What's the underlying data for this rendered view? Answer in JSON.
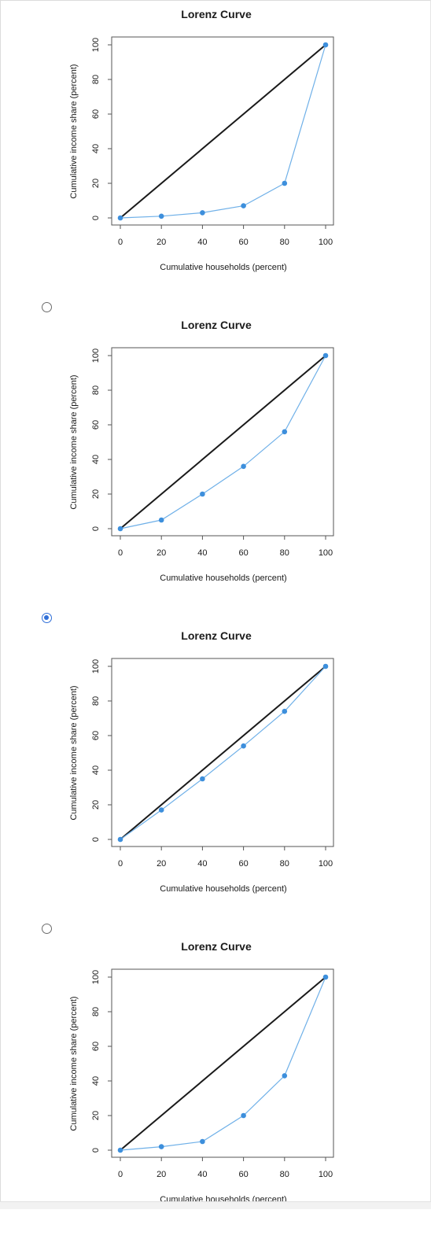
{
  "colors": {
    "equality_line": "#1a1a1a",
    "lorenz_line": "#6fb0e8",
    "lorenz_point": "#3d8fdc",
    "radio_selected": "#2f6fd8"
  },
  "options": [
    {
      "has_radio": false,
      "selected": false
    },
    {
      "has_radio": true,
      "selected": false
    },
    {
      "has_radio": true,
      "selected": true
    },
    {
      "has_radio": true,
      "selected": false
    }
  ],
  "chart_data": [
    {
      "type": "line",
      "title": "Lorenz Curve",
      "xlabel": "Cumulative households (percent)",
      "ylabel": "Cumulative income share (percent)",
      "xticks": [
        "0",
        "20",
        "40",
        "60",
        "80",
        "100"
      ],
      "yticks": [
        "0",
        "20",
        "40",
        "60",
        "80",
        "100"
      ],
      "xlim": [
        0,
        100
      ],
      "ylim": [
        0,
        100
      ],
      "series": [
        {
          "x": [
            0,
            100
          ],
          "y": [
            0,
            100
          ]
        },
        {
          "x": [
            0,
            20,
            40,
            60,
            80,
            100
          ],
          "y": [
            0,
            1,
            3,
            7,
            20,
            100
          ]
        }
      ]
    },
    {
      "type": "line",
      "title": "Lorenz Curve",
      "xlabel": "Cumulative households (percent)",
      "ylabel": "Cumulative income share (percent)",
      "xticks": [
        "0",
        "20",
        "40",
        "60",
        "80",
        "100"
      ],
      "yticks": [
        "0",
        "20",
        "40",
        "60",
        "80",
        "100"
      ],
      "xlim": [
        0,
        100
      ],
      "ylim": [
        0,
        100
      ],
      "series": [
        {
          "x": [
            0,
            100
          ],
          "y": [
            0,
            100
          ]
        },
        {
          "x": [
            0,
            20,
            40,
            60,
            80,
            100
          ],
          "y": [
            0,
            5,
            20,
            36,
            56,
            100
          ]
        }
      ]
    },
    {
      "type": "line",
      "title": "Lorenz Curve",
      "xlabel": "Cumulative households (percent)",
      "ylabel": "Cumulative income share (percent)",
      "xticks": [
        "0",
        "20",
        "40",
        "60",
        "80",
        "100"
      ],
      "yticks": [
        "0",
        "20",
        "40",
        "60",
        "80",
        "100"
      ],
      "xlim": [
        0,
        100
      ],
      "ylim": [
        0,
        100
      ],
      "series": [
        {
          "x": [
            0,
            100
          ],
          "y": [
            0,
            100
          ]
        },
        {
          "x": [
            0,
            20,
            40,
            60,
            80,
            100
          ],
          "y": [
            0,
            17,
            35,
            54,
            74,
            100
          ]
        }
      ]
    },
    {
      "type": "line",
      "title": "Lorenz Curve",
      "xlabel": "Cumulative households (percent)",
      "ylabel": "Cumulative income share (percent)",
      "xticks": [
        "0",
        "20",
        "40",
        "60",
        "80",
        "100"
      ],
      "yticks": [
        "0",
        "20",
        "40",
        "60",
        "80",
        "100"
      ],
      "xlim": [
        0,
        100
      ],
      "ylim": [
        0,
        100
      ],
      "series": [
        {
          "x": [
            0,
            100
          ],
          "y": [
            0,
            100
          ]
        },
        {
          "x": [
            0,
            20,
            40,
            60,
            80,
            100
          ],
          "y": [
            0,
            2,
            5,
            20,
            43,
            100
          ]
        }
      ]
    }
  ]
}
